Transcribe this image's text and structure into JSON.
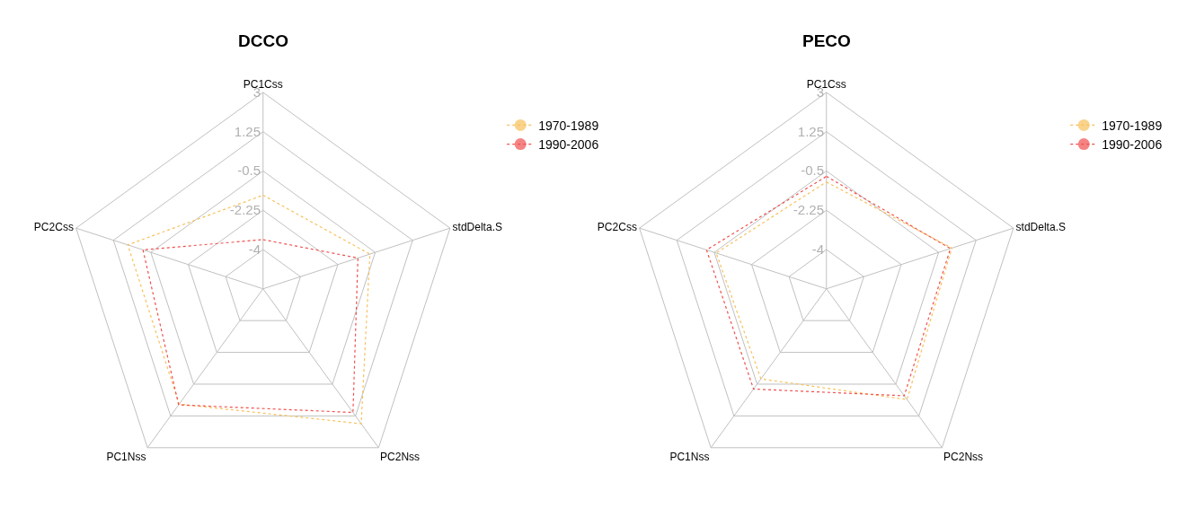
{
  "chart_data": [
    {
      "type": "radar",
      "title": "DCCO",
      "categories": [
        "PC1Css",
        "stdDelta.S",
        "PC2Nss",
        "PC1Nss",
        "PC2Css"
      ],
      "ylim": [
        -5.75,
        3
      ],
      "yticks": [
        -4,
        -2.25,
        -0.5,
        1.25,
        3
      ],
      "grid": true,
      "legend": "top right",
      "marker": "circle",
      "line_style": "dotted",
      "series": [
        {
          "name": "1970-1989",
          "color": "#f7c15a",
          "values": [
            -1.58,
            -0.75,
            1.68,
            0.6,
            0.58
          ]
        },
        {
          "name": "1990-2006",
          "color": "#f0504f",
          "values": [
            -3.56,
            -1.31,
            1.06,
            0.64,
            -0.13
          ]
        }
      ]
    },
    {
      "type": "radar",
      "title": "PECO",
      "categories": [
        "PC1Css",
        "stdDelta.S",
        "PC2Nss",
        "PC1Nss",
        "PC2Css"
      ],
      "ylim": [
        -5.75,
        3
      ],
      "yticks": [
        -4,
        -2.25,
        -0.5,
        1.25,
        3
      ],
      "grid": true,
      "legend": "top right",
      "marker": "circle",
      "line_style": "dotted",
      "series": [
        {
          "name": "1970-1989",
          "color": "#f7c15a",
          "values": [
            -0.99,
            0.12,
            0.35,
            -0.79,
            -0.59
          ]
        },
        {
          "name": "1990-2006",
          "color": "#f0504f",
          "values": [
            -0.74,
            0.05,
            0.14,
            -0.23,
            -0.14
          ]
        }
      ]
    }
  ]
}
